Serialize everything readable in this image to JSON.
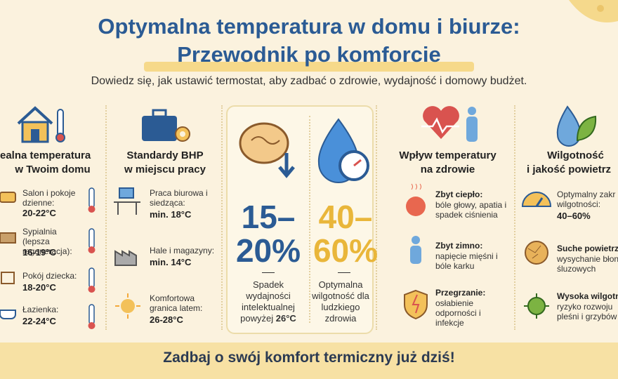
{
  "header": {
    "title_line1": "Optymalna temperatura w domu i biurze:",
    "title_line2": "Przewodnik po komforcie",
    "subtitle": "Dowiedz się, jak ustawić termostat, aby zadbać o zdrowie, wydajność i domowy budżet."
  },
  "home": {
    "title_line1": "ealna temperatura",
    "title_line2": "w Twoim domu",
    "items": [
      {
        "label": "Salon i pokoje dzienne:",
        "value": "20-22°C"
      },
      {
        "label": "Sypialnia (lepsza regeneracja):",
        "value": "16-19°C"
      },
      {
        "label": "Pokój dziecka:",
        "value": "18-20°C"
      },
      {
        "label": "Łazienka:",
        "value": "22-24°C"
      }
    ]
  },
  "work": {
    "title_line1": "Standardy BHP",
    "title_line2": "w miejscu pracy",
    "items": [
      {
        "label": "Praca biurowa i siedząca:",
        "value": "min. 18°C"
      },
      {
        "label": "Hale i magazyny:",
        "value": "min. 14°C"
      },
      {
        "label": "Komfortowa granica latem:",
        "value": "26-28°C"
      }
    ]
  },
  "highlights": [
    {
      "stat": "15–20%",
      "description": "Spadek wydajności intelektualnej powyżej",
      "emphasis": "26°C"
    },
    {
      "stat": "40–60%",
      "description": "Optymalna wilgotność dla ludzkiego zdrowia"
    }
  ],
  "health": {
    "title_line1": "Wpływ temperatury",
    "title_line2": "na zdrowie",
    "items": [
      {
        "label": "Zbyt ciepło:",
        "text": "bóle głowy, apatia i spadek ciśnienia"
      },
      {
        "label": "Zbyt zimno:",
        "text": "napięcie mięśni i bóle karku"
      },
      {
        "label": "Przegrzanie:",
        "text": "osłabienie odporności i infekcje"
      }
    ]
  },
  "air": {
    "title_line1": "Wilgotność",
    "title_line2": "i jakość powietrz",
    "items": [
      {
        "label": "Optymalny zakr wilgotności:",
        "value": "40–60%"
      },
      {
        "label": "Suche powietrz",
        "text": "wysychanie błon śluzowych"
      },
      {
        "label": "Wysoka wilgotn",
        "text": "ryzyko rozwoju pleśni i grzybów"
      }
    ]
  },
  "footer": {
    "text": "Zadbaj o swój komfort termiczny już dziś!"
  }
}
